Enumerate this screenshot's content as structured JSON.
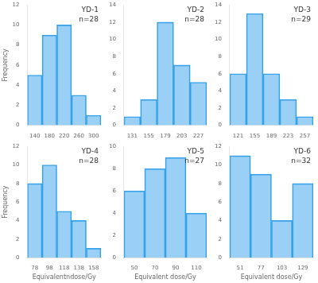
{
  "chart_data": [
    {
      "type": "bar",
      "title": "YD-1",
      "annotations": [
        "n=28"
      ],
      "ylabel": "Frequency",
      "x": [
        140,
        180,
        220,
        260,
        300
      ],
      "values": [
        5,
        9,
        10,
        3,
        1
      ],
      "xlim": [
        120,
        320
      ],
      "xticks": [
        140,
        180,
        220,
        260,
        300
      ],
      "ylim": [
        0,
        12
      ],
      "yticks": [
        0,
        2,
        4,
        6,
        8,
        10,
        12
      ],
      "grid": false
    },
    {
      "type": "bar",
      "title": "YD-2",
      "annotations": [
        "n=28"
      ],
      "x": [
        131,
        155,
        179,
        203,
        227
      ],
      "values": [
        1,
        3,
        12,
        7,
        5
      ],
      "xlim": [
        119,
        239
      ],
      "xticks": [
        131,
        155,
        179,
        203,
        227
      ],
      "ylim": [
        0,
        14
      ],
      "yticks": [
        0,
        2,
        4,
        6,
        8,
        10,
        12,
        14
      ],
      "grid": false
    },
    {
      "type": "bar",
      "title": "YD-3",
      "annotations": [
        "n=29"
      ],
      "x": [
        121,
        155,
        189,
        223,
        257
      ],
      "values": [
        6,
        13,
        6,
        3,
        1
      ],
      "xlim": [
        104,
        274
      ],
      "xticks": [
        121,
        155,
        189,
        223,
        257
      ],
      "ylim": [
        0,
        14
      ],
      "yticks": [
        0,
        2,
        4,
        6,
        8,
        10,
        12,
        14
      ],
      "grid": false
    },
    {
      "type": "bar",
      "title": "YD-4",
      "annotations": [
        "n=28"
      ],
      "ylabel": "Frequency",
      "xlabel": "Equivalentndose/Gy",
      "x": [
        78,
        98,
        118,
        138,
        158
      ],
      "values": [
        8,
        10,
        5,
        4,
        1
      ],
      "xlim": [
        68,
        168
      ],
      "xticks": [
        78,
        98,
        118,
        138,
        158
      ],
      "ylim": [
        0,
        12
      ],
      "yticks": [
        0,
        2,
        4,
        6,
        8,
        10,
        12
      ],
      "grid": false
    },
    {
      "type": "bar",
      "title": "YD-5",
      "annotations": [
        "n=27"
      ],
      "xlabel": "Equivalent dose/Gy",
      "x": [
        50,
        70,
        90,
        110
      ],
      "values": [
        6,
        8,
        9,
        4
      ],
      "xlim": [
        40,
        120
      ],
      "xticks": [
        50,
        70,
        90,
        110
      ],
      "ylim": [
        0,
        10
      ],
      "yticks": [
        0,
        2,
        4,
        6,
        8,
        10
      ],
      "grid": false
    },
    {
      "type": "bar",
      "title": "YD-6",
      "annotations": [
        "n=32"
      ],
      "xlabel": "Equivalent dose/Gy",
      "x": [
        51,
        77,
        103,
        129
      ],
      "values": [
        11,
        9,
        4,
        8
      ],
      "xlim": [
        38,
        142
      ],
      "xticks": [
        51,
        77,
        103,
        129
      ],
      "ylim": [
        0,
        12
      ],
      "yticks": [
        0,
        2,
        4,
        6,
        8,
        10,
        12
      ],
      "grid": false
    }
  ]
}
